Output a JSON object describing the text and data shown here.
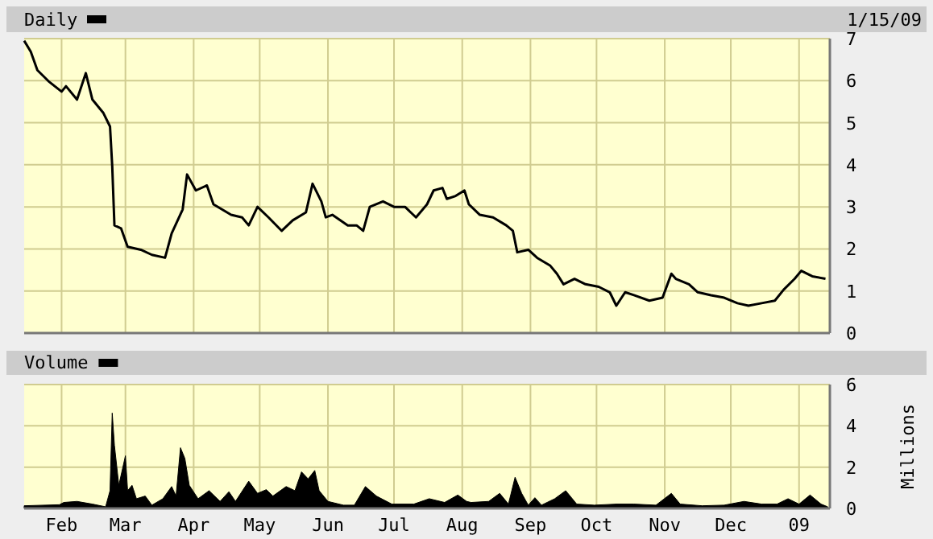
{
  "chart_data": [
    {
      "type": "line",
      "annotations": [
        "1/15/09"
      ],
      "legend": "top left",
      "grid": true,
      "tick_labels": "y",
      "xlim": [
        "2008-01-15",
        "2009-01-15"
      ],
      "xticks": [
        {
          "value": "2008-02-01",
          "label": null
        },
        {
          "value": "2008-03-01",
          "label": null
        },
        {
          "value": "2008-04-01",
          "label": null
        },
        {
          "value": "2008-05-01",
          "label": null
        },
        {
          "value": "2008-06-01",
          "label": null
        },
        {
          "value": "2008-07-01",
          "label": null
        },
        {
          "value": "2008-08-01",
          "label": null
        },
        {
          "value": "2008-09-01",
          "label": null
        },
        {
          "value": "2008-10-01",
          "label": null
        },
        {
          "value": "2008-11-01",
          "label": null
        },
        {
          "value": "2008-12-01",
          "label": null
        },
        {
          "value": "2009-01-01",
          "label": null
        }
      ],
      "ylim": [
        0,
        7
      ],
      "yticks": [
        0,
        1,
        2,
        3,
        4,
        5,
        6,
        7
      ],
      "x": [
        "2008-01-15",
        "2008-01-18",
        "2008-01-21",
        "2008-01-26",
        "2008-02-01",
        "2008-02-03",
        "2008-02-08",
        "2008-02-12",
        "2008-02-15",
        "2008-02-20",
        "2008-02-23",
        "2008-02-24",
        "2008-02-25",
        "2008-02-28",
        "2008-03-02",
        "2008-03-08",
        "2008-03-13",
        "2008-03-19",
        "2008-03-22",
        "2008-03-27",
        "2008-03-29",
        "2008-04-02",
        "2008-04-07",
        "2008-04-10",
        "2008-04-18",
        "2008-04-23",
        "2008-04-26",
        "2008-04-30",
        "2008-05-05",
        "2008-05-11",
        "2008-05-16",
        "2008-05-22",
        "2008-05-25",
        "2008-05-29",
        "2008-05-31",
        "2008-06-03",
        "2008-06-10",
        "2008-06-14",
        "2008-06-17",
        "2008-06-20",
        "2008-06-26",
        "2008-07-01",
        "2008-07-06",
        "2008-07-11",
        "2008-07-16",
        "2008-07-19",
        "2008-07-23",
        "2008-07-25",
        "2008-07-29",
        "2008-08-02",
        "2008-08-04",
        "2008-08-09",
        "2008-08-15",
        "2008-08-21",
        "2008-08-24",
        "2008-08-26",
        "2008-08-31",
        "2008-09-04",
        "2008-09-10",
        "2008-09-13",
        "2008-09-16",
        "2008-09-21",
        "2008-09-26",
        "2008-10-02",
        "2008-10-07",
        "2008-10-10",
        "2008-10-14",
        "2008-10-18",
        "2008-10-25",
        "2008-10-31",
        "2008-11-04",
        "2008-11-06",
        "2008-11-12",
        "2008-11-16",
        "2008-11-22",
        "2008-11-28",
        "2008-12-04",
        "2008-12-09",
        "2008-12-15",
        "2008-12-21",
        "2008-12-25",
        "2008-12-30",
        "2009-01-02",
        "2009-01-07",
        "2009-01-13"
      ],
      "series": [
        {
          "name": "Daily",
          "color": "#000000",
          "values": [
            6.95,
            6.69,
            6.25,
            5.99,
            5.74,
            5.87,
            5.55,
            6.18,
            5.55,
            5.23,
            4.91,
            3.97,
            2.56,
            2.49,
            2.05,
            1.98,
            1.86,
            1.79,
            2.37,
            2.94,
            3.77,
            3.39,
            3.51,
            3.06,
            2.81,
            2.75,
            2.56,
            3.0,
            2.75,
            2.43,
            2.68,
            2.87,
            3.55,
            3.13,
            2.75,
            2.81,
            2.56,
            2.56,
            2.43,
            3.0,
            3.13,
            3.0,
            3.0,
            2.75,
            3.06,
            3.39,
            3.45,
            3.19,
            3.26,
            3.39,
            3.06,
            2.81,
            2.75,
            2.56,
            2.43,
            1.92,
            1.98,
            1.79,
            1.6,
            1.41,
            1.16,
            1.29,
            1.16,
            1.1,
            0.97,
            0.65,
            0.97,
            0.9,
            0.77,
            0.84,
            1.41,
            1.29,
            1.16,
            0.97,
            0.9,
            0.84,
            0.71,
            0.65,
            0.71,
            0.77,
            1.03,
            1.29,
            1.48,
            1.35,
            1.29
          ]
        }
      ]
    },
    {
      "type": "area",
      "legend": "top left",
      "grid": true,
      "ylabel": "Millions",
      "xlim": [
        "2008-01-15",
        "2009-01-15"
      ],
      "xticks": [
        {
          "value": "2008-02-01",
          "label": "Feb"
        },
        {
          "value": "2008-03-01",
          "label": "Mar"
        },
        {
          "value": "2008-04-01",
          "label": "Apr"
        },
        {
          "value": "2008-05-01",
          "label": "May"
        },
        {
          "value": "2008-06-01",
          "label": "Jun"
        },
        {
          "value": "2008-07-01",
          "label": "Jul"
        },
        {
          "value": "2008-08-01",
          "label": "Aug"
        },
        {
          "value": "2008-09-01",
          "label": "Sep"
        },
        {
          "value": "2008-10-01",
          "label": "Oct"
        },
        {
          "value": "2008-11-01",
          "label": "Nov"
        },
        {
          "value": "2008-12-01",
          "label": "Dec"
        },
        {
          "value": "2009-01-01",
          "label": "09"
        }
      ],
      "ylim": [
        0,
        6
      ],
      "yticks": [
        0,
        2,
        4,
        6
      ],
      "x": [
        "2008-01-15",
        "2008-01-31",
        "2008-02-02",
        "2008-02-08",
        "2008-02-15",
        "2008-02-21",
        "2008-02-23",
        "2008-02-24",
        "2008-02-25",
        "2008-02-27",
        "2008-03-01",
        "2008-03-02",
        "2008-03-04",
        "2008-03-06",
        "2008-03-10",
        "2008-03-13",
        "2008-03-18",
        "2008-03-22",
        "2008-03-24",
        "2008-03-26",
        "2008-03-28",
        "2008-03-30",
        "2008-04-03",
        "2008-04-08",
        "2008-04-13",
        "2008-04-17",
        "2008-04-20",
        "2008-04-26",
        "2008-04-30",
        "2008-05-04",
        "2008-05-07",
        "2008-05-13",
        "2008-05-17",
        "2008-05-20",
        "2008-05-23",
        "2008-05-26",
        "2008-05-28",
        "2008-06-01",
        "2008-06-08",
        "2008-06-13",
        "2008-06-18",
        "2008-06-23",
        "2008-06-30",
        "2008-07-10",
        "2008-07-17",
        "2008-07-24",
        "2008-07-30",
        "2008-08-03",
        "2008-08-05",
        "2008-08-13",
        "2008-08-18",
        "2008-08-22",
        "2008-08-25",
        "2008-08-28",
        "2008-08-31",
        "2008-09-03",
        "2008-09-06",
        "2008-09-12",
        "2008-09-17",
        "2008-09-22",
        "2008-09-30",
        "2008-10-10",
        "2008-10-18",
        "2008-10-28",
        "2008-11-04",
        "2008-11-08",
        "2008-11-18",
        "2008-11-28",
        "2008-12-07",
        "2008-12-15",
        "2008-12-22",
        "2008-12-27",
        "2009-01-01",
        "2009-01-06",
        "2009-01-11",
        "2009-01-14"
      ],
      "series": [
        {
          "name": "Volume",
          "color": "#000000",
          "values": [
            0.13,
            0.18,
            0.29,
            0.34,
            0.21,
            0.08,
            0.86,
            4.62,
            3.06,
            1.12,
            2.55,
            0.86,
            1.12,
            0.47,
            0.6,
            0.16,
            0.47,
            1.06,
            0.6,
            2.94,
            2.42,
            1.12,
            0.47,
            0.86,
            0.34,
            0.81,
            0.34,
            1.32,
            0.73,
            0.91,
            0.6,
            1.06,
            0.86,
            1.77,
            1.43,
            1.84,
            0.86,
            0.34,
            0.16,
            0.16,
            1.06,
            0.6,
            0.21,
            0.21,
            0.47,
            0.29,
            0.65,
            0.34,
            0.29,
            0.34,
            0.73,
            0.21,
            1.51,
            0.73,
            0.16,
            0.52,
            0.16,
            0.47,
            0.86,
            0.21,
            0.16,
            0.21,
            0.21,
            0.16,
            0.73,
            0.21,
            0.13,
            0.16,
            0.34,
            0.21,
            0.21,
            0.47,
            0.21,
            0.65,
            0.21,
            0.08
          ]
        }
      ]
    }
  ]
}
